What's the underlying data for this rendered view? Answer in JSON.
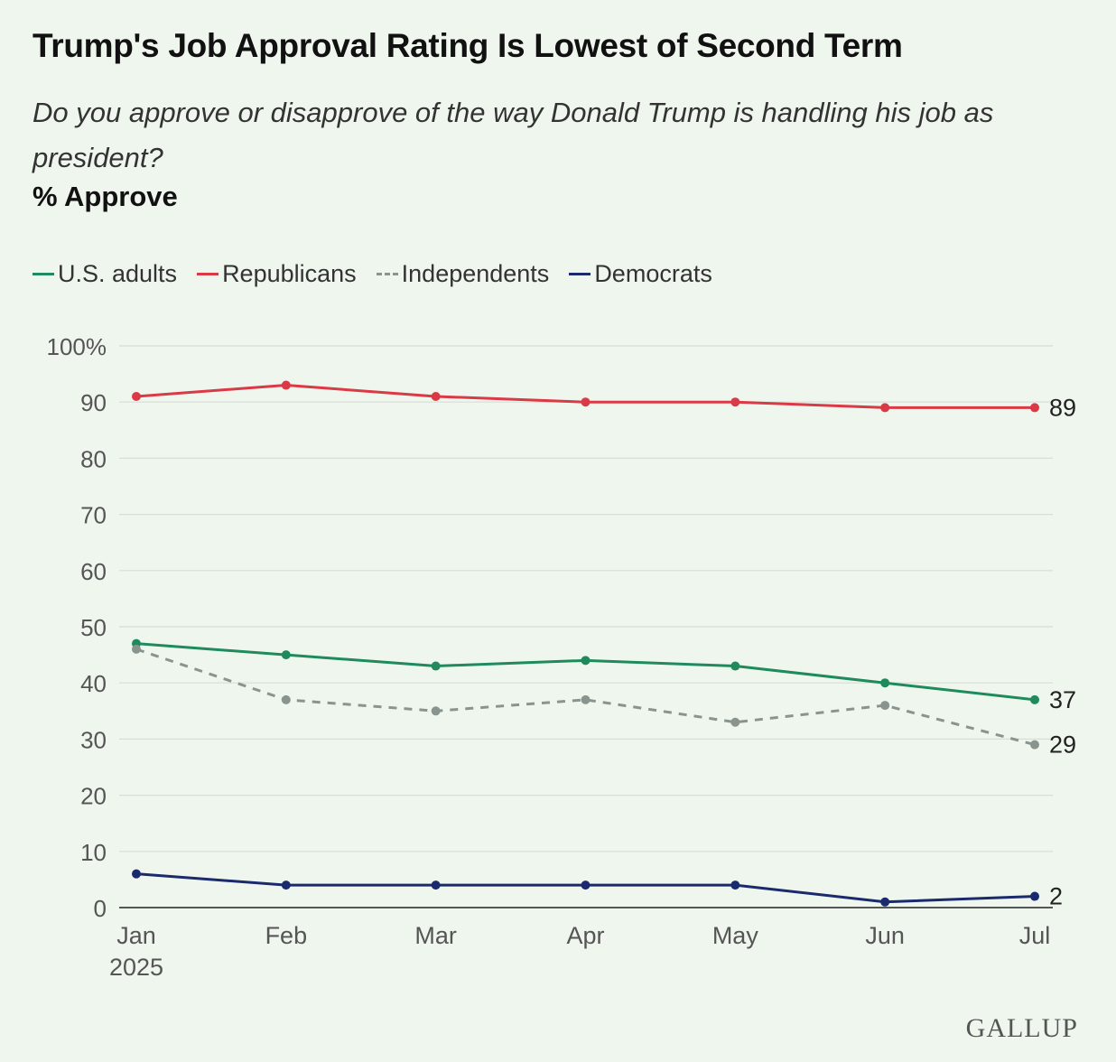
{
  "title": "Trump's Job Approval Rating Is Lowest of Second Term",
  "subtitle": "Do you approve or disapprove of the way Donald Trump is handling his job as president?",
  "measure": "% Approve",
  "source_logo": "GALLUP",
  "chart_data": {
    "type": "line",
    "categories": [
      "Jan",
      "Feb",
      "Mar",
      "Apr",
      "May",
      "Jun",
      "Jul"
    ],
    "x_sublabel": "2025",
    "ylim": [
      0,
      100
    ],
    "yticks": [
      0,
      10,
      20,
      30,
      40,
      50,
      60,
      70,
      80,
      90,
      100
    ],
    "ytick_labels": [
      "0",
      "10",
      "20",
      "30",
      "40",
      "50",
      "60",
      "70",
      "80",
      "90",
      "100%"
    ],
    "grid": true,
    "legend": "top-left",
    "series": [
      {
        "name": "U.S. adults",
        "color": "#1f8a5b",
        "dashed": false,
        "values": [
          47,
          45,
          43,
          44,
          43,
          40,
          37
        ],
        "end_label": "37"
      },
      {
        "name": "Republicans",
        "color": "#d93a45",
        "dashed": false,
        "values": [
          91,
          93,
          91,
          90,
          90,
          89,
          89
        ],
        "end_label": "89"
      },
      {
        "name": "Independents",
        "color": "#8a948e",
        "dashed": true,
        "values": [
          46,
          37,
          35,
          37,
          33,
          36,
          29
        ],
        "end_label": "29"
      },
      {
        "name": "Democrats",
        "color": "#1a2a6c",
        "dashed": false,
        "values": [
          6,
          4,
          4,
          4,
          4,
          1,
          2
        ],
        "end_label": "2"
      }
    ]
  }
}
